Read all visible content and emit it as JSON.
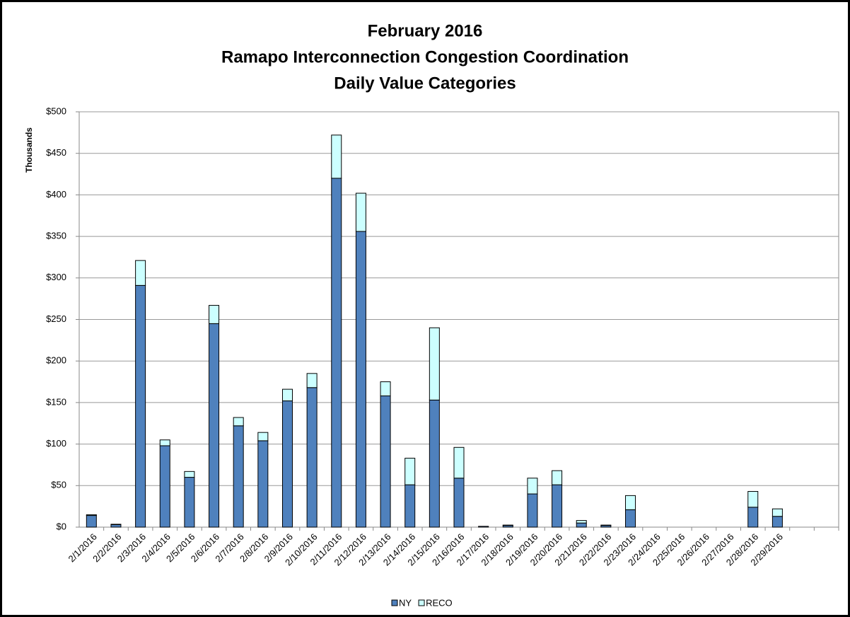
{
  "chart_data": {
    "type": "stacked_bar",
    "title": [
      "February 2016",
      "Ramapo Interconnection Congestion Coordination",
      "Daily Value Categories"
    ],
    "y_label": "Thousands",
    "categories": [
      "2/1/2016",
      "2/2/2016",
      "2/3/2016",
      "2/4/2016",
      "2/5/2016",
      "2/6/2016",
      "2/7/2016",
      "2/8/2016",
      "2/9/2016",
      "2/10/2016",
      "2/11/2016",
      "2/12/2016",
      "2/13/2016",
      "2/14/2016",
      "2/15/2016",
      "2/16/2016",
      "2/17/2016",
      "2/18/2016",
      "2/19/2016",
      "2/20/2016",
      "2/21/2016",
      "2/22/2016",
      "2/23/2016",
      "2/24/2016",
      "2/25/2016",
      "2/26/2016",
      "2/27/2016",
      "2/28/2016",
      "2/29/2016",
      null,
      null
    ],
    "series": [
      {
        "name": "NY",
        "color": "#4f81bd",
        "values": [
          14,
          3,
          291,
          98,
          60,
          245,
          122,
          104,
          152,
          168,
          420,
          356,
          158,
          51,
          153,
          59,
          1,
          2,
          40,
          51,
          5,
          2,
          21,
          0,
          0,
          0,
          0,
          24,
          13,
          null,
          null
        ]
      },
      {
        "name": "RECO",
        "color": "#ccffff",
        "values": [
          1,
          0.5,
          30,
          7,
          7,
          22,
          10,
          10,
          14,
          17,
          52,
          46,
          17,
          32,
          87,
          37,
          0,
          0.5,
          19,
          17,
          3,
          0.5,
          17,
          0,
          0,
          0,
          0,
          19,
          9,
          null,
          null
        ]
      }
    ],
    "ylim": [
      0,
      500
    ],
    "yticks": [
      {
        "value": 0,
        "label": "$0"
      },
      {
        "value": 50,
        "label": "$50"
      },
      {
        "value": 100,
        "label": "$100"
      },
      {
        "value": 150,
        "label": "$150"
      },
      {
        "value": 200,
        "label": "$200"
      },
      {
        "value": 250,
        "label": "$250"
      },
      {
        "value": 300,
        "label": "$300"
      },
      {
        "value": 350,
        "label": "$350"
      },
      {
        "value": 400,
        "label": "$400"
      },
      {
        "value": 450,
        "label": "$450"
      },
      {
        "value": 500,
        "label": "$500"
      }
    ],
    "grid": true,
    "legend": "bottom"
  }
}
